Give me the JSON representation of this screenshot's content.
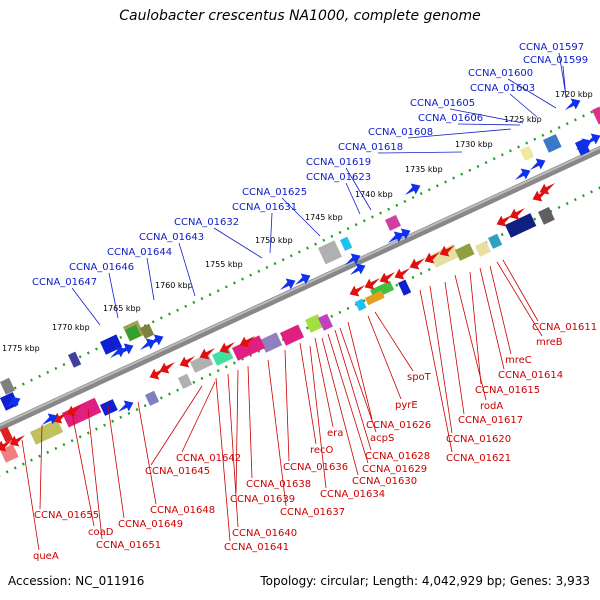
{
  "title": "Caulobacter crescentus NA1000, complete genome",
  "footer": {
    "accession": "Accession: NC_011916",
    "summary": "Topology: circular; Length: 4,042,929 bp; Genes: 3,933"
  },
  "scale_labels": [
    "1720 kbp",
    "1725 kbp",
    "1730 kbp",
    "1735 kbp",
    "1740 kbp",
    "1745 kbp",
    "1750 kbp",
    "1755 kbp",
    "1760 kbp",
    "1765 kbp",
    "1770 kbp",
    "1775 kbp"
  ],
  "upper_strand_labels": [
    "CCNA_01597",
    "CCNA_01599",
    "CCNA_01600",
    "CCNA_01603",
    "CCNA_01605",
    "CCNA_01606",
    "CCNA_01608",
    "CCNA_01618",
    "CCNA_01619",
    "CCNA_01623",
    "CCNA_01625",
    "CCNA_01631",
    "CCNA_01632",
    "CCNA_01643",
    "CCNA_01644",
    "CCNA_01646",
    "CCNA_01647"
  ],
  "lower_strand_labels": [
    "CCNA_01611",
    "mreB",
    "mreC",
    "CCNA_01614",
    "CCNA_01615",
    "rodA",
    "CCNA_01617",
    "CCNA_01620",
    "CCNA_01621",
    "spoT",
    "pyrE",
    "CCNA_01626",
    "acpS",
    "era",
    "CCNA_01628",
    "CCNA_01629",
    "recO",
    "CCNA_01630",
    "CCNA_01636",
    "CCNA_01634",
    "CCNA_01642",
    "CCNA_01645",
    "CCNA_01638",
    "CCNA_01639",
    "CCNA_01637",
    "CCNA_01640",
    "CCNA_01641",
    "CCNA_01648",
    "CCNA_01649",
    "CCNA_01655",
    "coaD",
    "CCNA_01651",
    "queA"
  ],
  "colors": {
    "upper_strand": "#1020c8",
    "lower_strand": "#cc0000",
    "backbone": "#777777",
    "dots": "#22a022"
  }
}
